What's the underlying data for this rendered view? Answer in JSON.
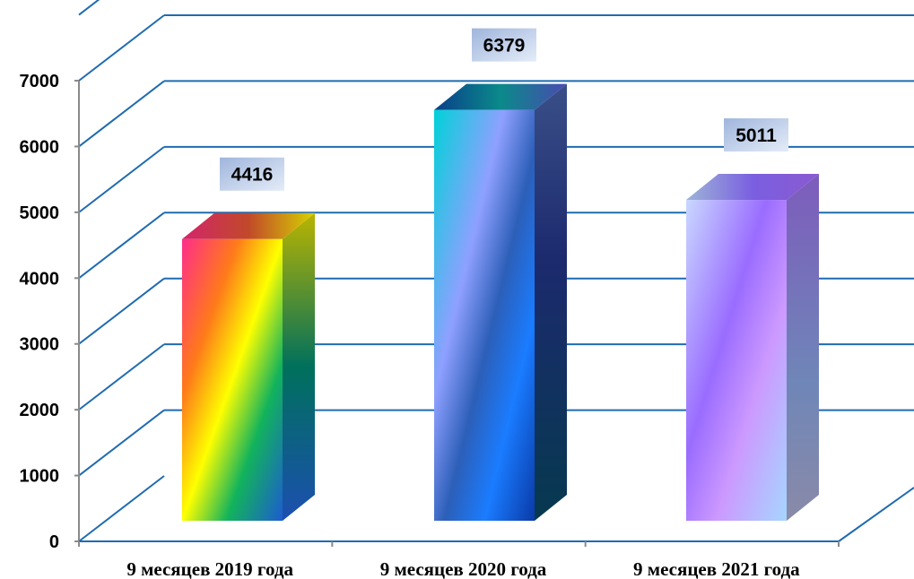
{
  "chart_data": {
    "type": "bar",
    "style": "3d-column",
    "categories": [
      "9 месяцев 2019 года",
      "9 месяцев 2020 года",
      "9 месяцев 2021 года"
    ],
    "values": [
      4416,
      6379,
      5011
    ],
    "data_labels": [
      "4416",
      "6379",
      "5011"
    ],
    "ylim": [
      0,
      7000
    ],
    "yticks": [
      0,
      1000,
      2000,
      3000,
      4000,
      5000,
      6000,
      7000
    ],
    "ytick_labels": [
      "0",
      "1000",
      "2000",
      "3000",
      "4000",
      "5000",
      "6000",
      "7000"
    ],
    "grid": true,
    "legend": "none",
    "colors": {
      "grid": "#1f6bb0",
      "label_box": [
        "#9fb5dc",
        "#e4ecf8"
      ]
    }
  }
}
